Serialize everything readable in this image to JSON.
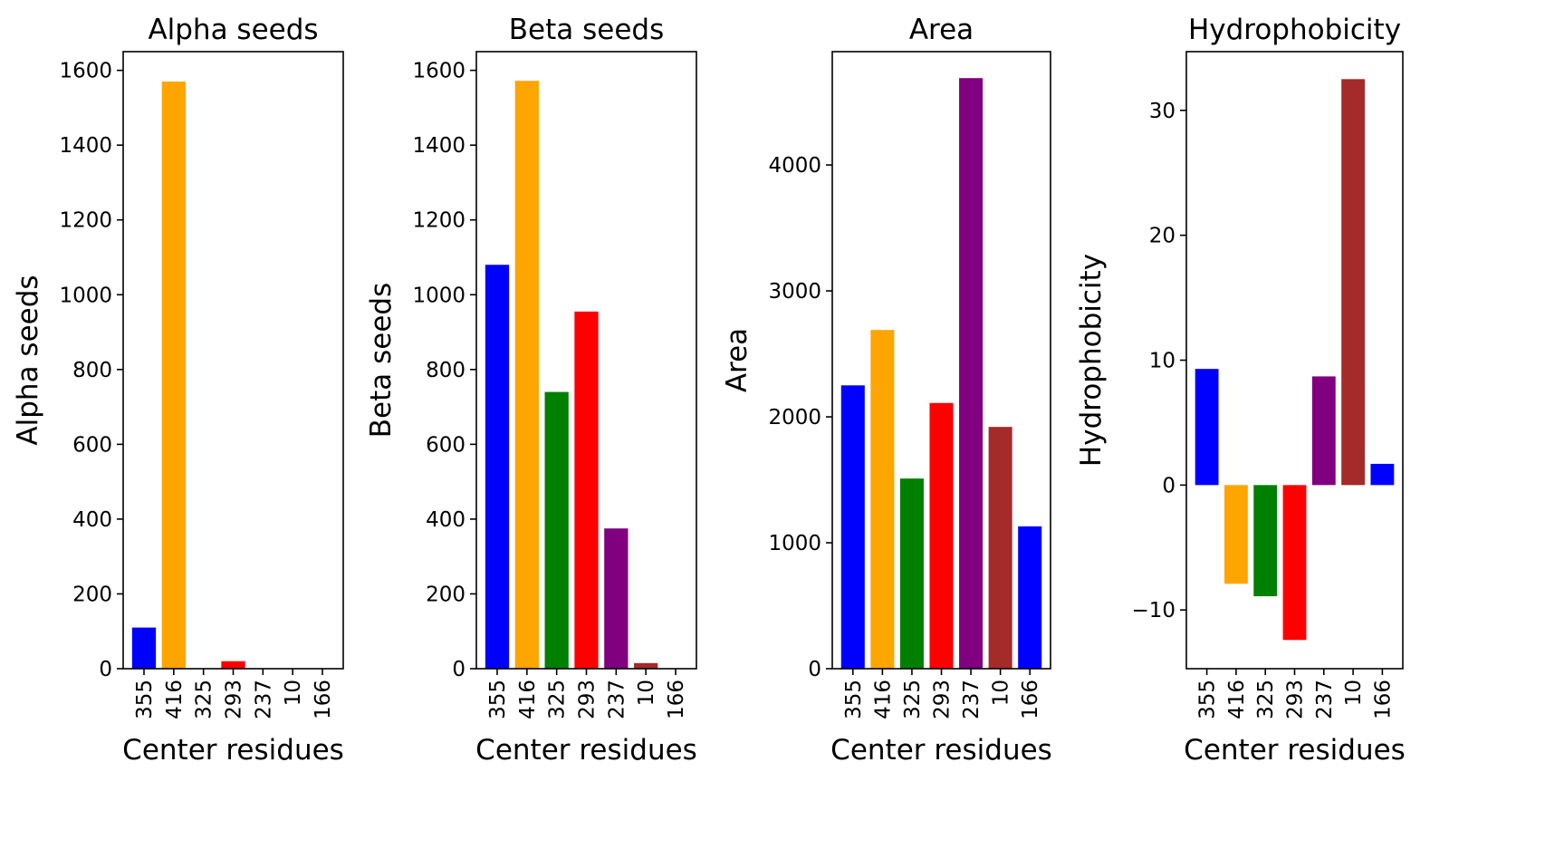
{
  "chart_data": [
    {
      "type": "bar",
      "title": "Alpha seeds",
      "xlabel": "Center residues",
      "ylabel": "Alpha seeds",
      "categories": [
        "355",
        "416",
        "325",
        "293",
        "237",
        "10",
        "166"
      ],
      "values": [
        110,
        1570,
        0,
        20,
        0,
        0,
        0
      ],
      "colors": [
        "#0000ff",
        "#ffa500",
        "#008000",
        "#ff0000",
        "#800080",
        "#a52a2a",
        "#0000ff"
      ],
      "ylim": [
        0,
        1650
      ],
      "yticks": [
        "0",
        "200",
        "400",
        "600",
        "800",
        "1000",
        "1200",
        "1400",
        "1600"
      ],
      "grid": false
    },
    {
      "type": "bar",
      "title": "Beta seeds",
      "xlabel": "Center residues",
      "ylabel": "Beta seeds",
      "categories": [
        "355",
        "416",
        "325",
        "293",
        "237",
        "10",
        "166"
      ],
      "values": [
        1080,
        1572,
        740,
        955,
        375,
        15,
        0
      ],
      "colors": [
        "#0000ff",
        "#ffa500",
        "#008000",
        "#ff0000",
        "#800080",
        "#a52a2a",
        "#0000ff"
      ],
      "ylim": [
        0,
        1650
      ],
      "yticks": [
        "0",
        "200",
        "400",
        "600",
        "800",
        "1000",
        "1200",
        "1400",
        "1600"
      ],
      "grid": false
    },
    {
      "type": "bar",
      "title": "Area",
      "xlabel": "Center residues",
      "ylabel": "Area",
      "categories": [
        "355",
        "416",
        "325",
        "293",
        "237",
        "10",
        "166"
      ],
      "values": [
        2250,
        2690,
        1510,
        2110,
        4690,
        1920,
        1130
      ],
      "colors": [
        "#0000ff",
        "#ffa500",
        "#008000",
        "#ff0000",
        "#800080",
        "#a52a2a",
        "#0000ff"
      ],
      "ylim": [
        0,
        4900
      ],
      "yticks": [
        "0",
        "1000",
        "2000",
        "3000",
        "4000"
      ],
      "grid": false
    },
    {
      "type": "bar",
      "title": "Hydrophobicity",
      "xlabel": "Center residues",
      "ylabel": "Hydrophobicity",
      "categories": [
        "355",
        "416",
        "325",
        "293",
        "237",
        "10",
        "166"
      ],
      "values": [
        9.3,
        -7.9,
        -8.9,
        -12.4,
        8.7,
        32.5,
        1.7
      ],
      "colors": [
        "#0000ff",
        "#ffa500",
        "#008000",
        "#ff0000",
        "#800080",
        "#a52a2a",
        "#0000ff"
      ],
      "ylim": [
        -14.7,
        34.7
      ],
      "yticks": [
        "−10",
        "0",
        "10",
        "20",
        "30"
      ],
      "grid": false
    }
  ]
}
